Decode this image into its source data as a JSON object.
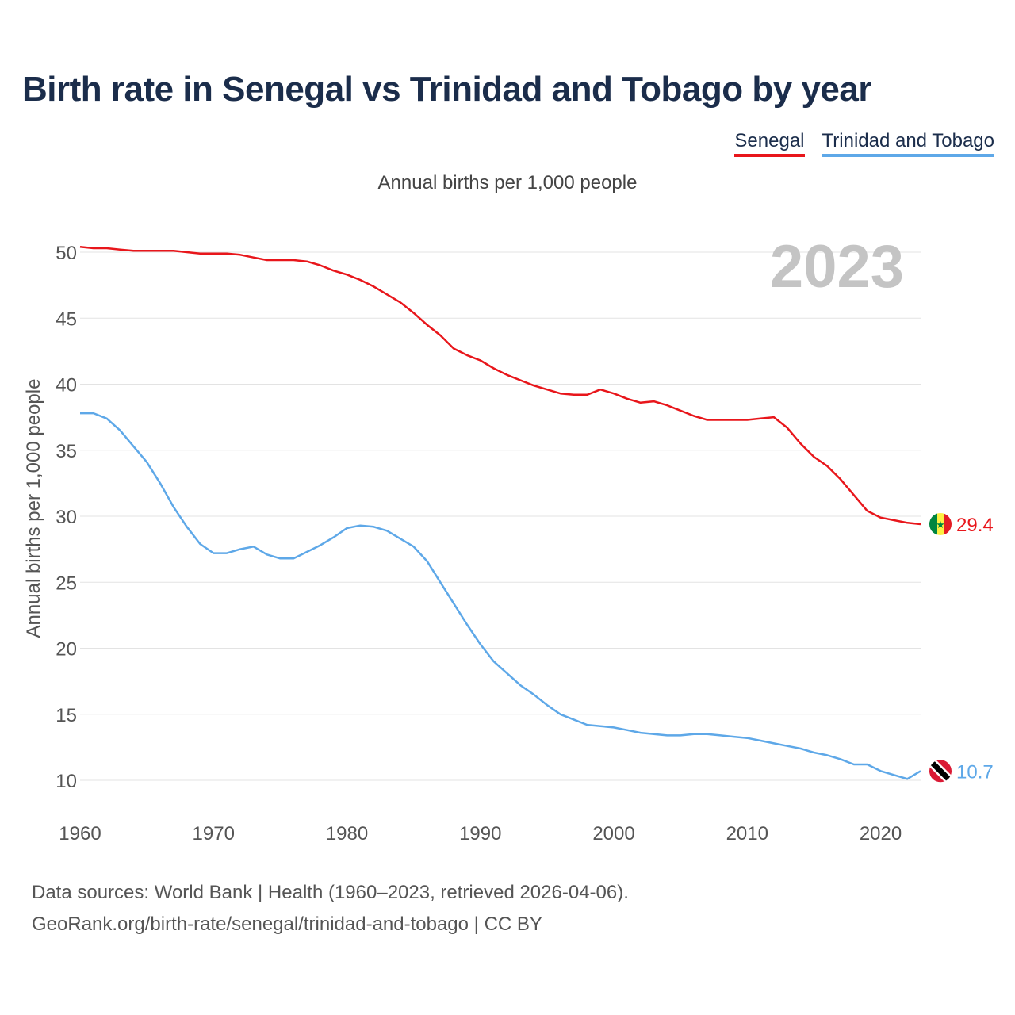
{
  "title": "Birth rate in Senegal vs Trinidad and Tobago by year",
  "subtitle": "Annual births per 1,000 people",
  "legend": [
    {
      "name": "Senegal",
      "color": "#e8161b"
    },
    {
      "name": "Trinidad and Tobago",
      "color": "#5ea8e8"
    }
  ],
  "year_badge": "2023",
  "footer": {
    "line1": "Data sources: World Bank | Health (1960–2023, retrieved 2026-04-06).",
    "line2": "GeoRank.org/birth-rate/senegal/trinidad-and-tobago | CC BY"
  },
  "chart_data": {
    "type": "line",
    "title": "Birth rate in Senegal vs Trinidad and Tobago by year",
    "ylabel": "Annual births per 1,000 people",
    "xlabel": "",
    "xlim": [
      1960,
      2023
    ],
    "ylim": [
      10,
      50
    ],
    "x_ticks": [
      1960,
      1970,
      1980,
      1990,
      2000,
      2010,
      2020
    ],
    "y_ticks": [
      10,
      15,
      20,
      25,
      30,
      35,
      40,
      45,
      50
    ],
    "grid": true,
    "x": [
      1960,
      1961,
      1962,
      1963,
      1964,
      1965,
      1966,
      1967,
      1968,
      1969,
      1970,
      1971,
      1972,
      1973,
      1974,
      1975,
      1976,
      1977,
      1978,
      1979,
      1980,
      1981,
      1982,
      1983,
      1984,
      1985,
      1986,
      1987,
      1988,
      1989,
      1990,
      1991,
      1992,
      1993,
      1994,
      1995,
      1996,
      1997,
      1998,
      1999,
      2000,
      2001,
      2002,
      2003,
      2004,
      2005,
      2006,
      2007,
      2008,
      2009,
      2010,
      2011,
      2012,
      2013,
      2014,
      2015,
      2016,
      2017,
      2018,
      2019,
      2020,
      2021,
      2022,
      2023
    ],
    "series": [
      {
        "name": "Senegal",
        "color": "#e8161b",
        "end_label": "29.4",
        "values": [
          50.4,
          50.3,
          50.3,
          50.2,
          50.1,
          50.1,
          50.1,
          50.1,
          50.0,
          49.9,
          49.9,
          49.9,
          49.8,
          49.6,
          49.4,
          49.4,
          49.4,
          49.3,
          49.0,
          48.6,
          48.3,
          47.9,
          47.4,
          46.8,
          46.2,
          45.4,
          44.5,
          43.7,
          42.7,
          42.2,
          41.8,
          41.2,
          40.7,
          40.3,
          39.9,
          39.6,
          39.3,
          39.2,
          39.2,
          39.6,
          39.3,
          38.9,
          38.6,
          38.7,
          38.4,
          38.0,
          37.6,
          37.3,
          37.3,
          37.3,
          37.3,
          37.4,
          37.5,
          36.7,
          35.5,
          34.5,
          33.8,
          32.8,
          31.6,
          30.4,
          29.9,
          29.7,
          29.5,
          29.4
        ]
      },
      {
        "name": "Trinidad and Tobago",
        "color": "#5ea8e8",
        "end_label": "10.7",
        "values": [
          37.8,
          37.8,
          37.4,
          36.5,
          35.3,
          34.1,
          32.5,
          30.7,
          29.2,
          27.9,
          27.2,
          27.2,
          27.5,
          27.7,
          27.1,
          26.8,
          26.8,
          27.3,
          27.8,
          28.4,
          29.1,
          29.3,
          29.2,
          28.9,
          28.3,
          27.7,
          26.6,
          25.0,
          23.4,
          21.8,
          20.3,
          19.0,
          18.1,
          17.2,
          16.5,
          15.7,
          15.0,
          14.6,
          14.2,
          14.1,
          14.0,
          13.8,
          13.6,
          13.5,
          13.4,
          13.4,
          13.5,
          13.5,
          13.4,
          13.3,
          13.2,
          13.0,
          12.8,
          12.6,
          12.4,
          12.1,
          11.9,
          11.6,
          11.2,
          11.2,
          10.7,
          10.4,
          10.1,
          10.7
        ]
      }
    ]
  }
}
